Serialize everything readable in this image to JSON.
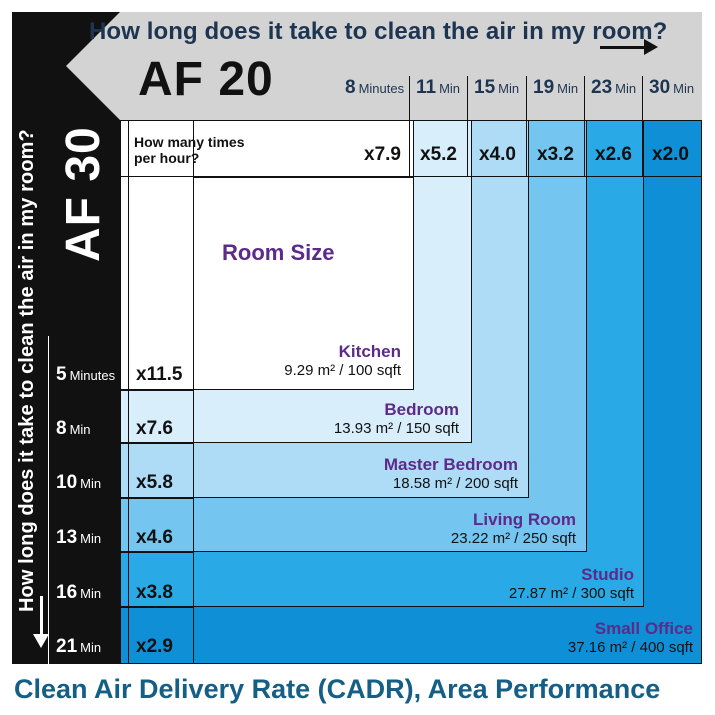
{
  "top_title": "How long does it take to clean the air in my room?",
  "side_title": "How long does it take to clean the air in my room?",
  "model_top": "AF 20",
  "model_side": "AF 30",
  "per_hour_label": "How many times per hour?",
  "room_size_label": "Room Size",
  "footer": "Clean Air Delivery Rate (CADR), Area Performance",
  "af20_columns": [
    {
      "time": "8",
      "unit": "Minutes",
      "multiplier": "x7.9"
    },
    {
      "time": "11",
      "unit": "Min",
      "multiplier": "x5.2"
    },
    {
      "time": "15",
      "unit": "Min",
      "multiplier": "x4.0"
    },
    {
      "time": "19",
      "unit": "Min",
      "multiplier": "x3.2"
    },
    {
      "time": "23",
      "unit": "Min",
      "multiplier": "x2.6"
    },
    {
      "time": "30",
      "unit": "Min",
      "multiplier": "x2.0"
    }
  ],
  "af30_rows": [
    {
      "time": "5",
      "unit": "Minutes",
      "multiplier": "x11.5"
    },
    {
      "time": "8",
      "unit": "Min",
      "multiplier": "x7.6"
    },
    {
      "time": "10",
      "unit": "Min",
      "multiplier": "x5.8"
    },
    {
      "time": "13",
      "unit": "Min",
      "multiplier": "x4.6"
    },
    {
      "time": "16",
      "unit": "Min",
      "multiplier": "x3.8"
    },
    {
      "time": "21",
      "unit": "Min",
      "multiplier": "x2.9"
    }
  ],
  "rooms": [
    {
      "name": "Kitchen",
      "area": "9.29 m² / 100 sqft"
    },
    {
      "name": "Bedroom",
      "area": "13.93 m² / 150 sqft"
    },
    {
      "name": "Master Bedroom",
      "area": "18.58 m² / 200 sqft"
    },
    {
      "name": "Living Room",
      "area": "23.22 m² / 250 sqft"
    },
    {
      "name": "Studio",
      "area": "27.87 m² / 300 sqft"
    },
    {
      "name": "Small Office",
      "area": "37.16 m² / 400 sqft"
    }
  ],
  "colors": {
    "zone_1": "#ffffff",
    "zone_2": "#d9eefb",
    "zone_3": "#aedcf6",
    "zone_4": "#74c5f0",
    "zone_5": "#29a9e6",
    "zone_6": "#0e8fd6",
    "room_name": "#5c2b8a",
    "title_blue": "#1e3552",
    "footer_blue": "#155e86"
  }
}
